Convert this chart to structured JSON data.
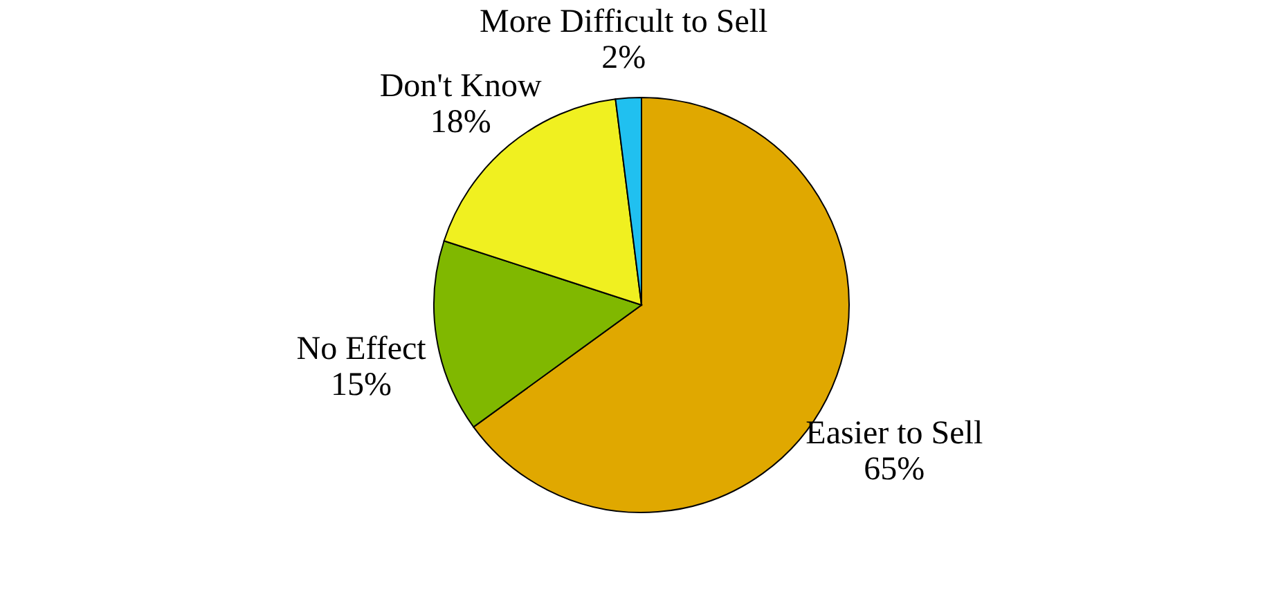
{
  "chart_data": {
    "type": "pie",
    "categories": [
      "Easier to Sell",
      "No Effect",
      "Don't Know",
      "More Difficult to Sell"
    ],
    "values": [
      65,
      15,
      18,
      2
    ],
    "value_labels": [
      "65%",
      "15%",
      "18%",
      "2%"
    ],
    "colors": [
      "#e0a800",
      "#80b800",
      "#f0f020",
      "#20c0f0"
    ]
  }
}
